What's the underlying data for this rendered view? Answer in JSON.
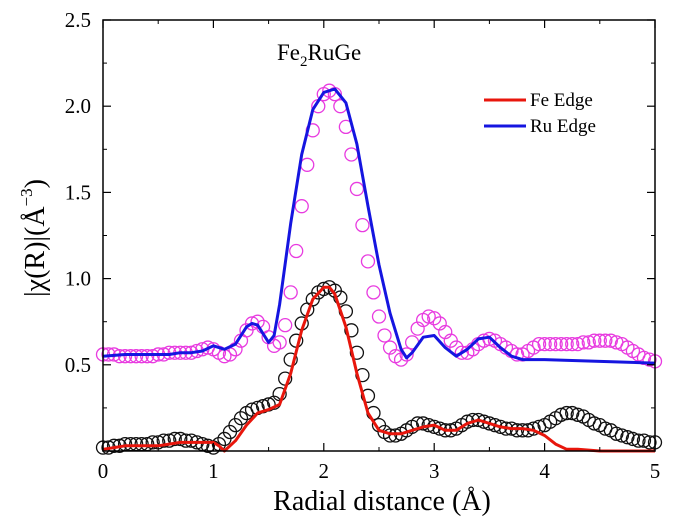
{
  "chart_data": {
    "type": "line",
    "annotation": {
      "base": "Fe",
      "sub": "2",
      "rest": "RuGe"
    },
    "xlabel": "Radial distance (Å)",
    "ylabel": {
      "main": "|χ(R)|(Å",
      "sup": "−3",
      "close": ")"
    },
    "xlim": [
      0,
      5
    ],
    "ylim": [
      0,
      2.5
    ],
    "xticks": [
      0,
      1,
      2,
      3,
      4,
      5
    ],
    "xtick_labels": [
      "0",
      "1",
      "2",
      "3",
      "4",
      "5"
    ],
    "yticks": [
      0.5,
      1.0,
      1.5,
      2.0,
      2.5
    ],
    "ytick_labels": [
      "0.5",
      "1.0",
      "1.5",
      "2.0",
      "2.5"
    ],
    "grid": false,
    "legend": {
      "position": "top-right",
      "entries": [
        "Fe Edge",
        "Ru Edge"
      ]
    },
    "series": [
      {
        "name": "Fe Edge",
        "kind": "line",
        "color": "#e8160c",
        "x": [
          0,
          0.1,
          0.2,
          0.3,
          0.4,
          0.5,
          0.6,
          0.7,
          0.8,
          0.9,
          1.0,
          1.05,
          1.1,
          1.2,
          1.3,
          1.4,
          1.5,
          1.6,
          1.7,
          1.8,
          1.9,
          2.0,
          2.05,
          2.1,
          2.2,
          2.3,
          2.4,
          2.5,
          2.6,
          2.7,
          2.8,
          2.9,
          3.0,
          3.1,
          3.2,
          3.3,
          3.4,
          3.5,
          3.6,
          3.7,
          3.8,
          3.9,
          4.0,
          4.1,
          4.2,
          4.3,
          4.5,
          4.7,
          5.0
        ],
        "y": [
          0.01,
          0.02,
          0.03,
          0.03,
          0.03,
          0.03,
          0.04,
          0.05,
          0.05,
          0.05,
          0.05,
          0.03,
          0.0,
          0.06,
          0.15,
          0.22,
          0.24,
          0.27,
          0.45,
          0.7,
          0.88,
          0.95,
          0.95,
          0.91,
          0.72,
          0.45,
          0.22,
          0.12,
          0.1,
          0.1,
          0.12,
          0.14,
          0.15,
          0.12,
          0.12,
          0.16,
          0.18,
          0.16,
          0.14,
          0.13,
          0.13,
          0.12,
          0.09,
          0.04,
          0.01,
          0.01,
          0.0,
          0.0,
          0.0
        ]
      },
      {
        "name": "Ru Edge",
        "kind": "line",
        "color": "#1515e0",
        "x": [
          0,
          0.2,
          0.4,
          0.6,
          0.7,
          0.8,
          0.9,
          1.0,
          1.1,
          1.2,
          1.3,
          1.35,
          1.4,
          1.5,
          1.55,
          1.6,
          1.7,
          1.8,
          1.9,
          2.0,
          2.1,
          2.2,
          2.3,
          2.4,
          2.5,
          2.6,
          2.7,
          2.75,
          2.8,
          2.9,
          3.0,
          3.1,
          3.2,
          3.3,
          3.4,
          3.5,
          3.6,
          3.7,
          3.8,
          4.0,
          4.5,
          5.0
        ],
        "y": [
          0.55,
          0.56,
          0.56,
          0.56,
          0.57,
          0.57,
          0.58,
          0.61,
          0.59,
          0.62,
          0.72,
          0.74,
          0.73,
          0.63,
          0.67,
          0.85,
          1.32,
          1.72,
          1.98,
          2.08,
          2.1,
          2.02,
          1.78,
          1.42,
          1.08,
          0.8,
          0.59,
          0.54,
          0.57,
          0.66,
          0.67,
          0.6,
          0.55,
          0.59,
          0.65,
          0.66,
          0.6,
          0.55,
          0.53,
          0.53,
          0.52,
          0.51
        ]
      },
      {
        "name": "Fe Edge fit",
        "kind": "markers",
        "color": "#111111",
        "x": [
          0.0,
          0.05,
          0.1,
          0.15,
          0.2,
          0.25,
          0.3,
          0.35,
          0.4,
          0.45,
          0.5,
          0.55,
          0.6,
          0.65,
          0.7,
          0.75,
          0.8,
          0.85,
          0.9,
          0.95,
          1.0,
          1.05,
          1.1,
          1.15,
          1.2,
          1.25,
          1.3,
          1.35,
          1.4,
          1.45,
          1.5,
          1.55,
          1.6,
          1.65,
          1.7,
          1.75,
          1.8,
          1.85,
          1.9,
          1.95,
          2.0,
          2.05,
          2.1,
          2.15,
          2.2,
          2.25,
          2.3,
          2.35,
          2.4,
          2.45,
          2.5,
          2.55,
          2.6,
          2.65,
          2.7,
          2.75,
          2.8,
          2.85,
          2.9,
          2.95,
          3.0,
          3.05,
          3.1,
          3.15,
          3.2,
          3.25,
          3.3,
          3.35,
          3.4,
          3.45,
          3.5,
          3.55,
          3.6,
          3.65,
          3.7,
          3.75,
          3.8,
          3.85,
          3.9,
          3.95,
          4.0,
          4.05,
          4.1,
          4.15,
          4.2,
          4.25,
          4.3,
          4.35,
          4.4,
          4.45,
          4.5,
          4.55,
          4.6,
          4.65,
          4.7,
          4.75,
          4.8,
          4.85,
          4.9,
          4.95,
          5.0
        ],
        "y": [
          0.02,
          0.02,
          0.03,
          0.03,
          0.04,
          0.04,
          0.04,
          0.04,
          0.04,
          0.05,
          0.05,
          0.06,
          0.06,
          0.07,
          0.07,
          0.06,
          0.06,
          0.05,
          0.04,
          0.03,
          0.02,
          0.04,
          0.07,
          0.11,
          0.15,
          0.19,
          0.22,
          0.24,
          0.25,
          0.26,
          0.27,
          0.28,
          0.33,
          0.42,
          0.53,
          0.64,
          0.74,
          0.82,
          0.88,
          0.92,
          0.94,
          0.95,
          0.93,
          0.89,
          0.81,
          0.7,
          0.57,
          0.44,
          0.32,
          0.22,
          0.15,
          0.11,
          0.09,
          0.09,
          0.1,
          0.12,
          0.14,
          0.16,
          0.16,
          0.15,
          0.14,
          0.13,
          0.12,
          0.12,
          0.13,
          0.15,
          0.17,
          0.18,
          0.18,
          0.17,
          0.16,
          0.15,
          0.14,
          0.13,
          0.13,
          0.12,
          0.12,
          0.12,
          0.13,
          0.14,
          0.15,
          0.17,
          0.19,
          0.21,
          0.22,
          0.22,
          0.21,
          0.2,
          0.18,
          0.16,
          0.15,
          0.13,
          0.12,
          0.1,
          0.09,
          0.08,
          0.07,
          0.06,
          0.06,
          0.05,
          0.05
        ]
      },
      {
        "name": "Ru Edge fit",
        "kind": "markers",
        "color": "#e83be0",
        "x": [
          0.0,
          0.05,
          0.1,
          0.15,
          0.2,
          0.25,
          0.3,
          0.35,
          0.4,
          0.45,
          0.5,
          0.55,
          0.6,
          0.65,
          0.7,
          0.75,
          0.8,
          0.85,
          0.9,
          0.95,
          1.0,
          1.05,
          1.1,
          1.15,
          1.2,
          1.25,
          1.3,
          1.35,
          1.4,
          1.45,
          1.5,
          1.55,
          1.6,
          1.65,
          1.7,
          1.75,
          1.8,
          1.85,
          1.9,
          1.95,
          2.0,
          2.05,
          2.1,
          2.15,
          2.2,
          2.25,
          2.3,
          2.35,
          2.4,
          2.45,
          2.5,
          2.55,
          2.6,
          2.65,
          2.7,
          2.75,
          2.8,
          2.85,
          2.9,
          2.95,
          3.0,
          3.05,
          3.1,
          3.15,
          3.2,
          3.25,
          3.3,
          3.35,
          3.4,
          3.45,
          3.5,
          3.55,
          3.6,
          3.65,
          3.7,
          3.75,
          3.8,
          3.85,
          3.9,
          3.95,
          4.0,
          4.05,
          4.1,
          4.15,
          4.2,
          4.25,
          4.3,
          4.35,
          4.4,
          4.45,
          4.5,
          4.55,
          4.6,
          4.65,
          4.7,
          4.75,
          4.8,
          4.85,
          4.9,
          4.95,
          5.0
        ],
        "y": [
          0.56,
          0.56,
          0.56,
          0.55,
          0.55,
          0.55,
          0.55,
          0.55,
          0.55,
          0.55,
          0.56,
          0.56,
          0.57,
          0.57,
          0.57,
          0.57,
          0.57,
          0.58,
          0.59,
          0.6,
          0.59,
          0.57,
          0.55,
          0.56,
          0.59,
          0.64,
          0.7,
          0.74,
          0.75,
          0.72,
          0.66,
          0.61,
          0.63,
          0.73,
          0.92,
          1.16,
          1.42,
          1.66,
          1.86,
          2.0,
          2.07,
          2.09,
          2.07,
          2.0,
          1.88,
          1.72,
          1.52,
          1.31,
          1.1,
          0.92,
          0.78,
          0.67,
          0.6,
          0.55,
          0.53,
          0.56,
          0.63,
          0.71,
          0.76,
          0.78,
          0.77,
          0.74,
          0.69,
          0.64,
          0.6,
          0.57,
          0.57,
          0.59,
          0.62,
          0.64,
          0.65,
          0.64,
          0.62,
          0.6,
          0.58,
          0.56,
          0.56,
          0.58,
          0.6,
          0.62,
          0.62,
          0.62,
          0.62,
          0.62,
          0.62,
          0.62,
          0.62,
          0.63,
          0.63,
          0.64,
          0.64,
          0.64,
          0.64,
          0.63,
          0.62,
          0.6,
          0.58,
          0.56,
          0.54,
          0.53,
          0.52
        ]
      }
    ]
  }
}
